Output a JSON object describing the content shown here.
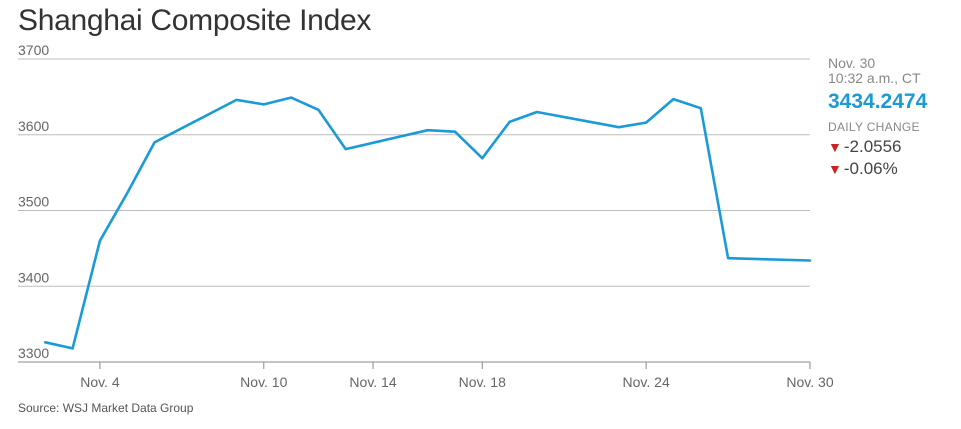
{
  "title": "Shanghai Composite Index",
  "source": "Source: WSJ Market Data Group",
  "quote": {
    "date": "Nov. 30",
    "time": "10:32 a.m., CT",
    "value": "3434.2474",
    "daily_change_label": "DAILY CHANGE",
    "change_points": "-2.0556",
    "change_percent": "-0.06%",
    "change_direction": "down"
  },
  "colors": {
    "line": "#1a9ad6",
    "value": "#1a9ad6",
    "down_arrow": "#cc2222",
    "grid": "#bdbdbd"
  },
  "chart_data": {
    "type": "line",
    "title": "Shanghai Composite Index",
    "xlabel": "",
    "ylabel": "",
    "ylim": [
      3300,
      3700
    ],
    "yticks": [
      3300,
      3400,
      3500,
      3600,
      3700
    ],
    "xlim": [
      "2015-11-01",
      "2015-11-30"
    ],
    "xticks": [
      {
        "date": "2015-11-04",
        "label": "Nov. 4"
      },
      {
        "date": "2015-11-10",
        "label": "Nov. 10"
      },
      {
        "date": "2015-11-14",
        "label": "Nov. 14"
      },
      {
        "date": "2015-11-18",
        "label": "Nov. 18"
      },
      {
        "date": "2015-11-24",
        "label": "Nov. 24"
      },
      {
        "date": "2015-11-30",
        "label": "Nov. 30"
      }
    ],
    "grid": true,
    "series": [
      {
        "x": [
          "2015-11-02",
          "2015-11-03",
          "2015-11-04",
          "2015-11-05",
          "2015-11-06",
          "2015-11-09",
          "2015-11-10",
          "2015-11-11",
          "2015-11-12",
          "2015-11-13",
          "2015-11-16",
          "2015-11-17",
          "2015-11-18",
          "2015-11-19",
          "2015-11-20",
          "2015-11-23",
          "2015-11-24",
          "2015-11-25",
          "2015-11-26",
          "2015-11-27",
          "2015-11-30"
        ],
        "values": [
          3326,
          3318,
          3460,
          3523,
          3590,
          3646,
          3640,
          3649,
          3633,
          3581,
          3606,
          3604,
          3569,
          3617,
          3630,
          3610,
          3616,
          3647,
          3635,
          3437,
          3434
        ]
      }
    ]
  }
}
